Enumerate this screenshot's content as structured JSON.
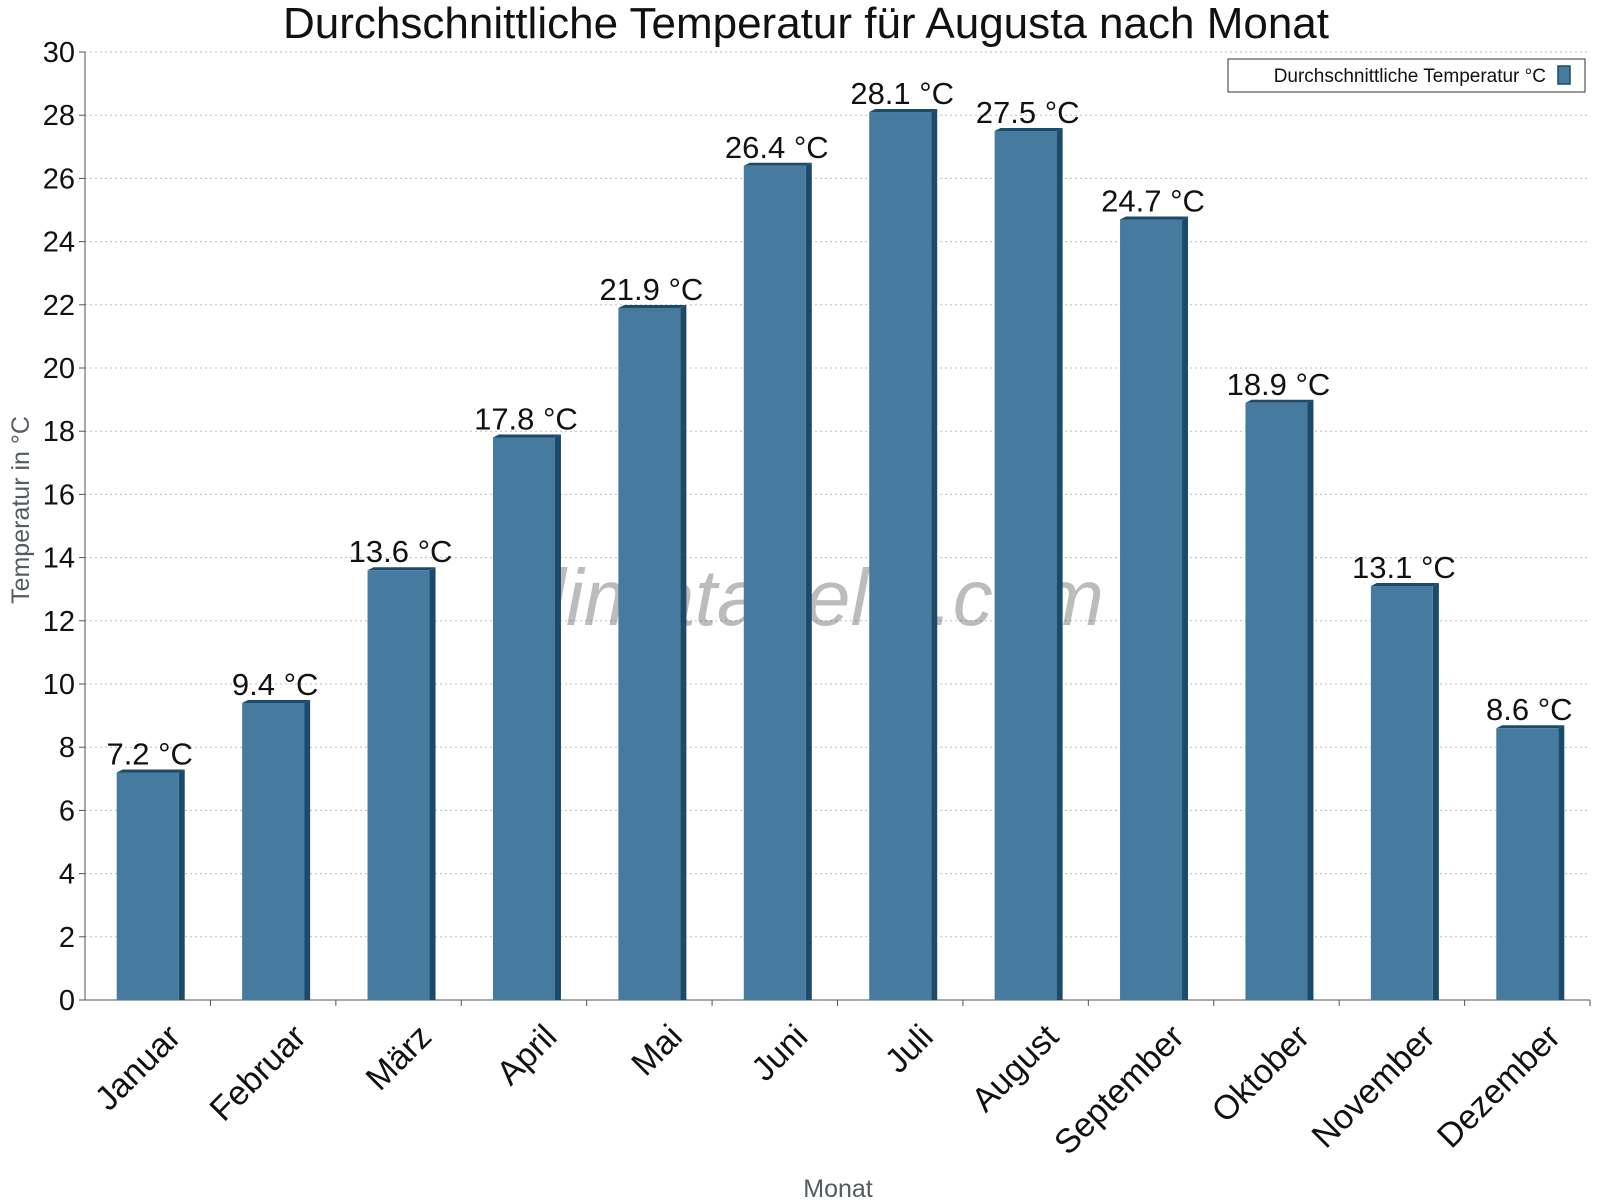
{
  "chart_data": {
    "type": "bar",
    "title": "Durchschnittliche Temperatur für Augusta nach Monat",
    "xlabel": "Monat",
    "ylabel": "Temperatur in °C",
    "ylim": [
      0,
      30
    ],
    "yticks": [
      0,
      2,
      4,
      6,
      8,
      10,
      12,
      14,
      16,
      18,
      20,
      22,
      24,
      26,
      28,
      30
    ],
    "categories": [
      "Januar",
      "Februar",
      "März",
      "April",
      "Mai",
      "Juni",
      "Juli",
      "August",
      "September",
      "Oktober",
      "November",
      "Dezember"
    ],
    "series": [
      {
        "name": "Durchschnittliche Temperatur °C",
        "values": [
          7.2,
          9.4,
          13.6,
          17.8,
          21.9,
          26.4,
          28.1,
          27.5,
          24.7,
          18.9,
          13.1,
          8.6
        ],
        "labels": [
          "7.2 °C",
          "9.4 °C",
          "13.6 °C",
          "17.8 °C",
          "21.9 °C",
          "26.4 °C",
          "28.1 °C",
          "27.5 °C",
          "24.7 °C",
          "18.9 °C",
          "13.1 °C",
          "8.6 °C"
        ],
        "color": "#467a9e",
        "edge_color": "#1b4a6b"
      }
    ],
    "grid": true,
    "legend": "top-right",
    "watermark": "klimatabelle.com"
  }
}
